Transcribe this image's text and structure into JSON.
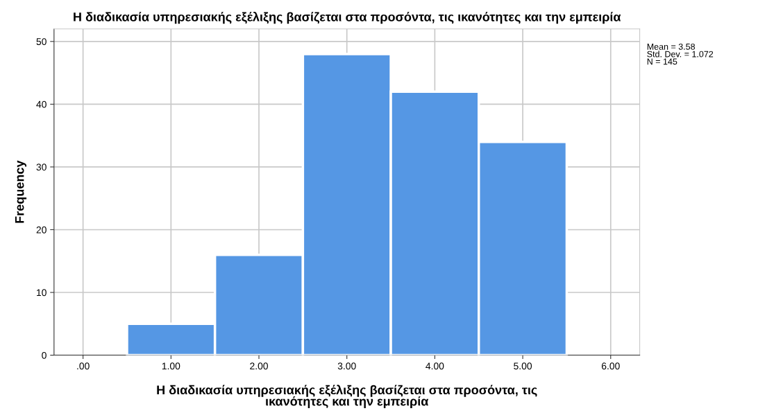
{
  "chart_data": {
    "type": "histogram",
    "title": "Η διαδικασία υπηρεσιακής εξέλιξης βασίζεται στα προσόντα, τις ικανότητες και την εμπειρία",
    "xlabel": "Η διαδικασία υπηρεσιακής εξέλιξης βασίζεται στα προσόντα, τις\nικανότητες και την εμπειρία",
    "ylabel": "Frequency",
    "bins": [
      0.5,
      1.5,
      2.5,
      3.5,
      4.5,
      5.5
    ],
    "values": [
      5,
      16,
      48,
      42,
      34
    ],
    "color": "#5597e4",
    "xlim": [
      -0.33,
      6.33
    ],
    "ylim": [
      0,
      52
    ],
    "xticks": [
      {
        "value": 0,
        "label": ".00"
      },
      {
        "value": 1,
        "label": "1.00"
      },
      {
        "value": 2,
        "label": "2.00"
      },
      {
        "value": 3,
        "label": "3.00"
      },
      {
        "value": 4,
        "label": "4.00"
      },
      {
        "value": 5,
        "label": "5.00"
      },
      {
        "value": 6,
        "label": "6.00"
      }
    ],
    "yticks": [
      0,
      10,
      20,
      30,
      40,
      50
    ],
    "grid": true,
    "annotations": [
      "Mean = 3.58\nStd. Dev. = 1.072\nN = 145"
    ]
  }
}
